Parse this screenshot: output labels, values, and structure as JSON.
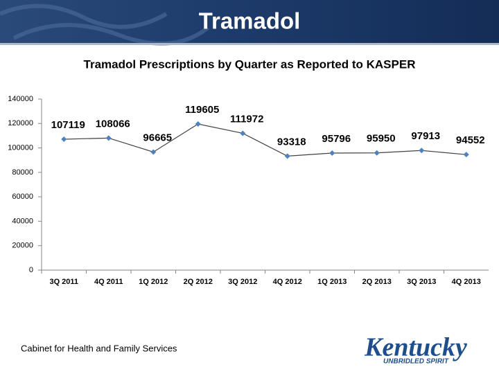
{
  "slide_title": "Tramadol",
  "footer": "Cabinet for Health and Family Services",
  "logo": {
    "name": "Kentucky",
    "tagline": "UNBRIDLED SPIRIT"
  },
  "chart_data": {
    "type": "line",
    "title": "Tramadol Prescriptions by Quarter as Reported to KASPER",
    "categories": [
      "3Q 2011",
      "4Q 2011",
      "1Q 2012",
      "2Q 2012",
      "3Q 2012",
      "4Q 2012",
      "1Q 2013",
      "2Q 2013",
      "3Q 2013",
      "4Q 2013"
    ],
    "series": [
      {
        "name": "Tramadol",
        "color": "#4f81bd",
        "line_color": "#404040",
        "values": [
          107119,
          108066,
          96665,
          119605,
          111972,
          93318,
          95796,
          95950,
          97913,
          94552
        ]
      }
    ],
    "ylim": [
      0,
      140000
    ],
    "yticks": [
      0,
      20000,
      40000,
      60000,
      80000,
      100000,
      120000,
      140000
    ],
    "grid": false
  }
}
